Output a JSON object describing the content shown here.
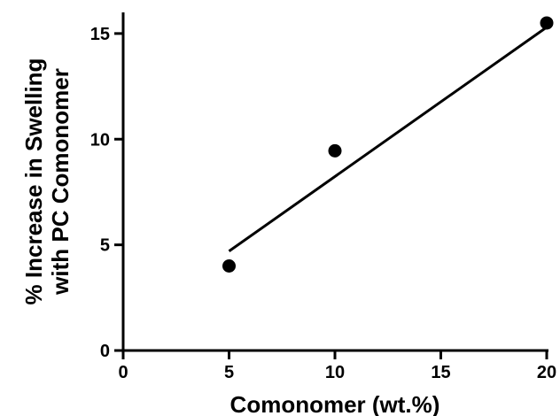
{
  "chart_data": {
    "type": "scatter",
    "title": "",
    "xlabel": "Comonomer (wt.%)",
    "ylabel_lines": [
      "% Increase in Swelling",
      "with  PC Comonomer"
    ],
    "xlim": [
      0,
      20
    ],
    "ylim": [
      0,
      16
    ],
    "xticks": [
      0,
      5,
      10,
      15,
      20
    ],
    "yticks": [
      0,
      5,
      10,
      15
    ],
    "grid": false,
    "series": [
      {
        "x": [
          5,
          10,
          20
        ],
        "y": [
          4.0,
          9.45,
          15.5
        ]
      }
    ],
    "fit_line": {
      "x": [
        5,
        20
      ],
      "y": [
        4.7,
        15.3
      ]
    },
    "colors": {
      "marker": "#000000",
      "line": "#000000",
      "axis": "#000000"
    }
  }
}
